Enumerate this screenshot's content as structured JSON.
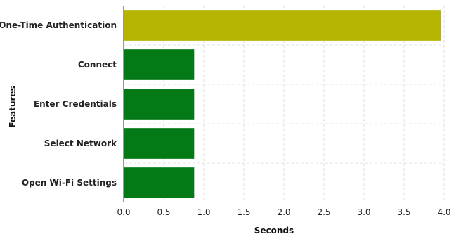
{
  "chart_data": {
    "type": "bar",
    "orientation": "horizontal",
    "categories": [
      "One-Time Authentication",
      "Connect",
      "Enter Credentials",
      "Select Network",
      "Open Wi-Fi Settings"
    ],
    "values": [
      3.96,
      0.88,
      0.88,
      0.88,
      0.88
    ],
    "bar_colors": [
      "#b5b400",
      "#047a16",
      "#047a16",
      "#047a16",
      "#047a16"
    ],
    "xlabel": "Seconds",
    "ylabel": "Features",
    "xlim": [
      0.0,
      4.0
    ],
    "xticks": [
      "0.0",
      "0.5",
      "1.0",
      "1.5",
      "2.0",
      "2.5",
      "3.0",
      "3.5",
      "4.0"
    ],
    "grid": true
  }
}
